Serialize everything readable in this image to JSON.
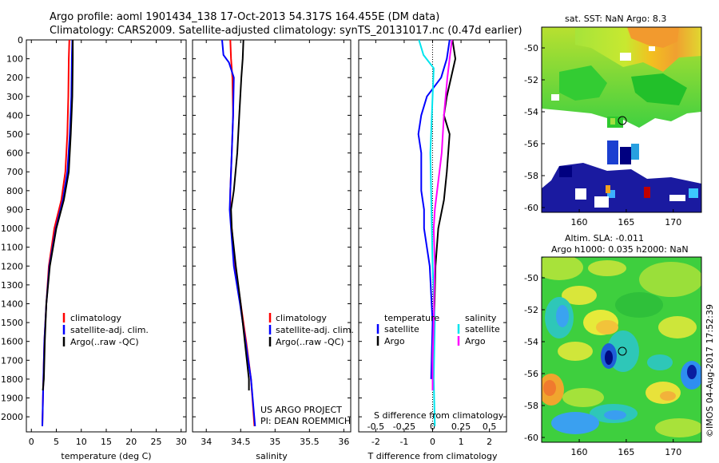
{
  "header": {
    "title_line1": "Argo profile: aoml 1901434_138 17-Oct-2013 54.317S 164.455E (DM data)",
    "title_line2": "Climatology: CARS2009. Satellite-adjusted climatology: synTS_20131017.nc (0.47d earlier)"
  },
  "chart_data": [
    {
      "type": "line",
      "name": "temperature-profile",
      "xlabel": "temperature (deg C)",
      "xlim": [
        -1,
        31
      ],
      "ylim": [
        2080,
        0
      ],
      "x_ticks": [
        0,
        5,
        10,
        15,
        20,
        25,
        30
      ],
      "y_ticks": [
        0,
        100,
        200,
        300,
        400,
        500,
        600,
        700,
        800,
        900,
        1000,
        1100,
        1200,
        1300,
        1400,
        1500,
        1600,
        1700,
        1800,
        1900,
        2000
      ],
      "legend": [
        "climatology",
        "satellite-adj. clim.",
        "Argo(..raw -QC)"
      ],
      "legend_colors": [
        "#ff0000",
        "#0000ff",
        "#000000"
      ],
      "series": [
        {
          "name": "climatology",
          "color": "#ff0000",
          "points": [
            [
              7.6,
              0
            ],
            [
              7.5,
              100
            ],
            [
              7.4,
              300
            ],
            [
              7.2,
              500
            ],
            [
              6.8,
              700
            ],
            [
              6.0,
              850
            ],
            [
              4.6,
              1000
            ],
            [
              3.5,
              1200
            ],
            [
              3.0,
              1400
            ],
            [
              2.6,
              1600
            ],
            [
              2.4,
              1800
            ],
            [
              2.2,
              2050
            ]
          ]
        },
        {
          "name": "satellite-adj. clim.",
          "color": "#0000ff",
          "points": [
            [
              8.2,
              0
            ],
            [
              8.1,
              100
            ],
            [
              8.0,
              300
            ],
            [
              7.7,
              500
            ],
            [
              7.2,
              700
            ],
            [
              6.3,
              850
            ],
            [
              4.9,
              1000
            ],
            [
              3.6,
              1200
            ],
            [
              3.0,
              1400
            ],
            [
              2.6,
              1600
            ],
            [
              2.4,
              1800
            ],
            [
              2.2,
              2050
            ]
          ]
        },
        {
          "name": "Argo(..raw -QC)",
          "color": "#000000",
          "points": [
            [
              8.3,
              0
            ],
            [
              8.3,
              100
            ],
            [
              8.2,
              300
            ],
            [
              7.9,
              500
            ],
            [
              7.5,
              700
            ],
            [
              6.5,
              850
            ],
            [
              5.0,
              1000
            ],
            [
              3.7,
              1200
            ],
            [
              3.0,
              1400
            ],
            [
              2.7,
              1600
            ],
            [
              2.5,
              1800
            ],
            [
              2.3,
              1860
            ]
          ]
        }
      ]
    },
    {
      "type": "line",
      "name": "salinity-profile",
      "xlabel": "salinity",
      "xlim": [
        33.8,
        36.1
      ],
      "ylim": [
        2080,
        0
      ],
      "x_ticks": [
        34,
        34.5,
        35,
        35.5,
        36
      ],
      "legend": [
        "climatology",
        "satellite-adj. clim.",
        "Argo(..raw -QC)"
      ],
      "legend_colors": [
        "#ff0000",
        "#0000ff",
        "#000000"
      ],
      "annotation": [
        "US ARGO PROJECT",
        "PI: DEAN ROEMMICH"
      ],
      "series": [
        {
          "name": "climatology",
          "color": "#ff0000",
          "points": [
            [
              34.35,
              0
            ],
            [
              34.36,
              100
            ],
            [
              34.38,
              200
            ],
            [
              34.39,
              400
            ],
            [
              34.37,
              600
            ],
            [
              34.35,
              800
            ],
            [
              34.35,
              900
            ],
            [
              34.37,
              1000
            ],
            [
              34.42,
              1200
            ],
            [
              34.5,
              1400
            ],
            [
              34.58,
              1600
            ],
            [
              34.65,
              1800
            ],
            [
              34.7,
              2050
            ]
          ]
        },
        {
          "name": "satellite-adj. clim.",
          "color": "#0000ff",
          "points": [
            [
              34.23,
              0
            ],
            [
              34.25,
              80
            ],
            [
              34.33,
              120
            ],
            [
              34.4,
              200
            ],
            [
              34.39,
              400
            ],
            [
              34.37,
              600
            ],
            [
              34.35,
              800
            ],
            [
              34.34,
              900
            ],
            [
              34.36,
              1000
            ],
            [
              34.4,
              1200
            ],
            [
              34.49,
              1400
            ],
            [
              34.57,
              1600
            ],
            [
              34.65,
              1800
            ],
            [
              34.71,
              2050
            ]
          ]
        },
        {
          "name": "Argo(..raw -QC)",
          "color": "#000000",
          "points": [
            [
              34.54,
              0
            ],
            [
              34.53,
              100
            ],
            [
              34.51,
              200
            ],
            [
              34.48,
              400
            ],
            [
              34.45,
              600
            ],
            [
              34.4,
              800
            ],
            [
              34.36,
              900
            ],
            [
              34.37,
              1000
            ],
            [
              34.43,
              1200
            ],
            [
              34.5,
              1400
            ],
            [
              34.56,
              1600
            ],
            [
              34.62,
              1800
            ],
            [
              34.62,
              1860
            ]
          ]
        }
      ]
    },
    {
      "type": "line",
      "name": "difference-profile",
      "xlabel": "T difference from climatology",
      "xlabel_top": "S difference from climatology",
      "xlim": [
        -2.6,
        2.6
      ],
      "ylim": [
        2080,
        0
      ],
      "x_ticks": [
        -2,
        -1,
        0,
        1,
        2
      ],
      "x_ticks_top": [
        "-0.5",
        "-0.25",
        "0",
        "0.25",
        "0.5"
      ],
      "legend_left_title": "temperature",
      "legend_right_title": "salinity",
      "legend_left": [
        "satellite",
        "Argo"
      ],
      "legend_left_colors": [
        "#0000ff",
        "#000000"
      ],
      "legend_right": [
        "satellite",
        "Argo"
      ],
      "legend_right_colors": [
        "#00e5ee",
        "#ff00ff"
      ],
      "series": [
        {
          "name": "T satellite",
          "color": "#0000ff",
          "points": [
            [
              0.6,
              0
            ],
            [
              0.5,
              100
            ],
            [
              0.3,
              200
            ],
            [
              -0.2,
              300
            ],
            [
              -0.4,
              400
            ],
            [
              -0.5,
              500
            ],
            [
              -0.4,
              600
            ],
            [
              -0.4,
              800
            ],
            [
              -0.3,
              900
            ],
            [
              -0.3,
              1000
            ],
            [
              -0.1,
              1200
            ],
            [
              0.0,
              1500
            ],
            [
              -0.05,
              1800
            ]
          ]
        },
        {
          "name": "T Argo",
          "color": "#000000",
          "points": [
            [
              0.7,
              0
            ],
            [
              0.8,
              100
            ],
            [
              0.5,
              300
            ],
            [
              0.4,
              400
            ],
            [
              0.6,
              500
            ],
            [
              0.5,
              700
            ],
            [
              0.4,
              850
            ],
            [
              0.2,
              1000
            ],
            [
              0.1,
              1200
            ],
            [
              0.05,
              1500
            ],
            [
              0.0,
              1700
            ],
            [
              0.0,
              1860
            ]
          ]
        },
        {
          "name": "S satellite",
          "color": "#00e5ee",
          "points": [
            [
              -0.12,
              0
            ],
            [
              -0.08,
              80
            ],
            [
              0.01,
              150
            ],
            [
              0.0,
              300
            ],
            [
              -0.02,
              600
            ],
            [
              -0.01,
              900
            ],
            [
              0.0,
              1200
            ],
            [
              0.02,
              1500
            ],
            [
              0.01,
              1800
            ],
            [
              0.02,
              2050
            ]
          ]
        },
        {
          "name": "S Argo",
          "color": "#ff00ff",
          "points": [
            [
              0.17,
              0
            ],
            [
              0.15,
              100
            ],
            [
              0.13,
              200
            ],
            [
              0.1,
              400
            ],
            [
              0.08,
              600
            ],
            [
              0.04,
              800
            ],
            [
              0.02,
              900
            ],
            [
              0.01,
              1000
            ],
            [
              0.02,
              1200
            ],
            [
              0.01,
              1500
            ],
            [
              0.0,
              1700
            ],
            [
              0.0,
              1860
            ]
          ]
        }
      ]
    },
    {
      "type": "heatmap",
      "name": "sst-map",
      "title": "sat. SST: NaN Argo: 8.3",
      "xlim": [
        156,
        173
      ],
      "ylim": [
        -60.3,
        -48.7
      ],
      "x_ticks": [
        160,
        165,
        170
      ],
      "y_ticks": [
        -50,
        -52,
        -54,
        -56,
        -58,
        -60
      ],
      "argo_position": [
        164.455,
        -54.317
      ]
    },
    {
      "type": "heatmap",
      "name": "sla-map",
      "title_line1": "Altim. SLA: -0.011",
      "title_line2": "Argo h1000: 0.035 h2000: NaN",
      "xlim": [
        156,
        173
      ],
      "ylim": [
        -60.3,
        -48.7
      ],
      "x_ticks": [
        160,
        165,
        170
      ],
      "y_ticks": [
        -50,
        -52,
        -54,
        -56,
        -58,
        -60
      ],
      "argo_position": [
        164.455,
        -54.317
      ]
    }
  ],
  "footer": {
    "credit": "©IMOS 04-Aug-2017 17:52:39"
  }
}
